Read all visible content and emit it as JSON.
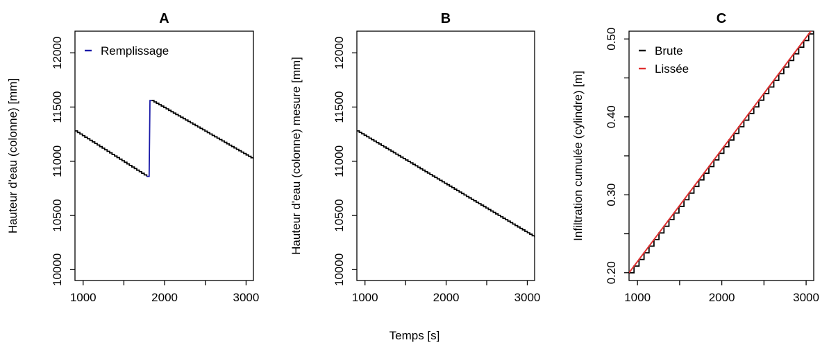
{
  "shared_xlabel": "Temps [s]",
  "chart_data": [
    {
      "type": "line",
      "title": "A",
      "xlabel": "",
      "ylabel": "Hauteur d'eau (colonne) [mm]",
      "xlim": [
        900,
        3090
      ],
      "ylim": [
        9900,
        12200
      ],
      "xticks": [
        1000,
        1500,
        2000,
        2500,
        3000
      ],
      "xtick_labels": [
        "1000",
        "",
        "2000",
        "",
        "3000"
      ],
      "yticks": [
        10000,
        10500,
        11000,
        11500,
        12000
      ],
      "ytick_labels": [
        "10000",
        "10500",
        "11000",
        "11500",
        "12000"
      ],
      "legend": {
        "position": "top-left",
        "entries": [
          {
            "label": "Remplissage",
            "color": "#1a1aa8"
          }
        ]
      },
      "series": [
        {
          "color": "#000000",
          "step": 30,
          "segments": [
            {
              "x": [
                900,
                1780
              ],
              "y": [
                11280,
                10860
              ]
            },
            {
              "x": [
                1840,
                3090
              ],
              "y": [
                11560,
                11020
              ]
            }
          ]
        },
        {
          "name": "Remplissage",
          "color": "#1a1aa8",
          "x": [
            1780,
            1810,
            1820,
            1840
          ],
          "y": [
            10860,
            10860,
            11560,
            11560
          ]
        }
      ]
    },
    {
      "type": "line",
      "title": "B",
      "xlabel": "",
      "ylabel": "Hauteur d'eau (colonne) mesure [mm]",
      "xlim": [
        900,
        3090
      ],
      "ylim": [
        9900,
        12200
      ],
      "xticks": [
        1000,
        1500,
        2000,
        2500,
        3000
      ],
      "xtick_labels": [
        "1000",
        "",
        "2000",
        "",
        "3000"
      ],
      "yticks": [
        10000,
        10500,
        11000,
        11500,
        12000
      ],
      "ytick_labels": [
        "10000",
        "10500",
        "11000",
        "11500",
        "12000"
      ],
      "series": [
        {
          "color": "#000000",
          "step": 30,
          "segments": [
            {
              "x": [
                900,
                3090
              ],
              "y": [
                11280,
                10300
              ]
            }
          ]
        }
      ]
    },
    {
      "type": "line",
      "title": "C",
      "xlabel": "",
      "ylabel": "Infiltration cumulée (cylindre) [m]",
      "xlim": [
        900,
        3090
      ],
      "ylim": [
        0.19,
        0.51
      ],
      "xticks": [
        1000,
        1500,
        2000,
        2500,
        3000
      ],
      "xtick_labels": [
        "1000",
        "",
        "2000",
        "",
        "3000"
      ],
      "yticks": [
        0.2,
        0.25,
        0.3,
        0.35,
        0.4,
        0.45,
        0.5
      ],
      "ytick_labels": [
        "0.20",
        "",
        "0.30",
        "",
        "0.40",
        "",
        "0.50"
      ],
      "legend": {
        "position": "top-left",
        "entries": [
          {
            "label": "Brute",
            "color": "#000000"
          },
          {
            "label": "Lissée",
            "color": "#e03030"
          }
        ]
      },
      "series": [
        {
          "name": "Brute",
          "color": "#000000",
          "step": 60,
          "segments": [
            {
              "x": [
                900,
                3090
              ],
              "y": [
                0.2,
                0.515
              ]
            }
          ]
        },
        {
          "name": "Lissée",
          "color": "#e03030",
          "segments": [
            {
              "x": [
                900,
                3090
              ],
              "y": [
                0.2,
                0.515
              ]
            }
          ]
        }
      ]
    }
  ]
}
